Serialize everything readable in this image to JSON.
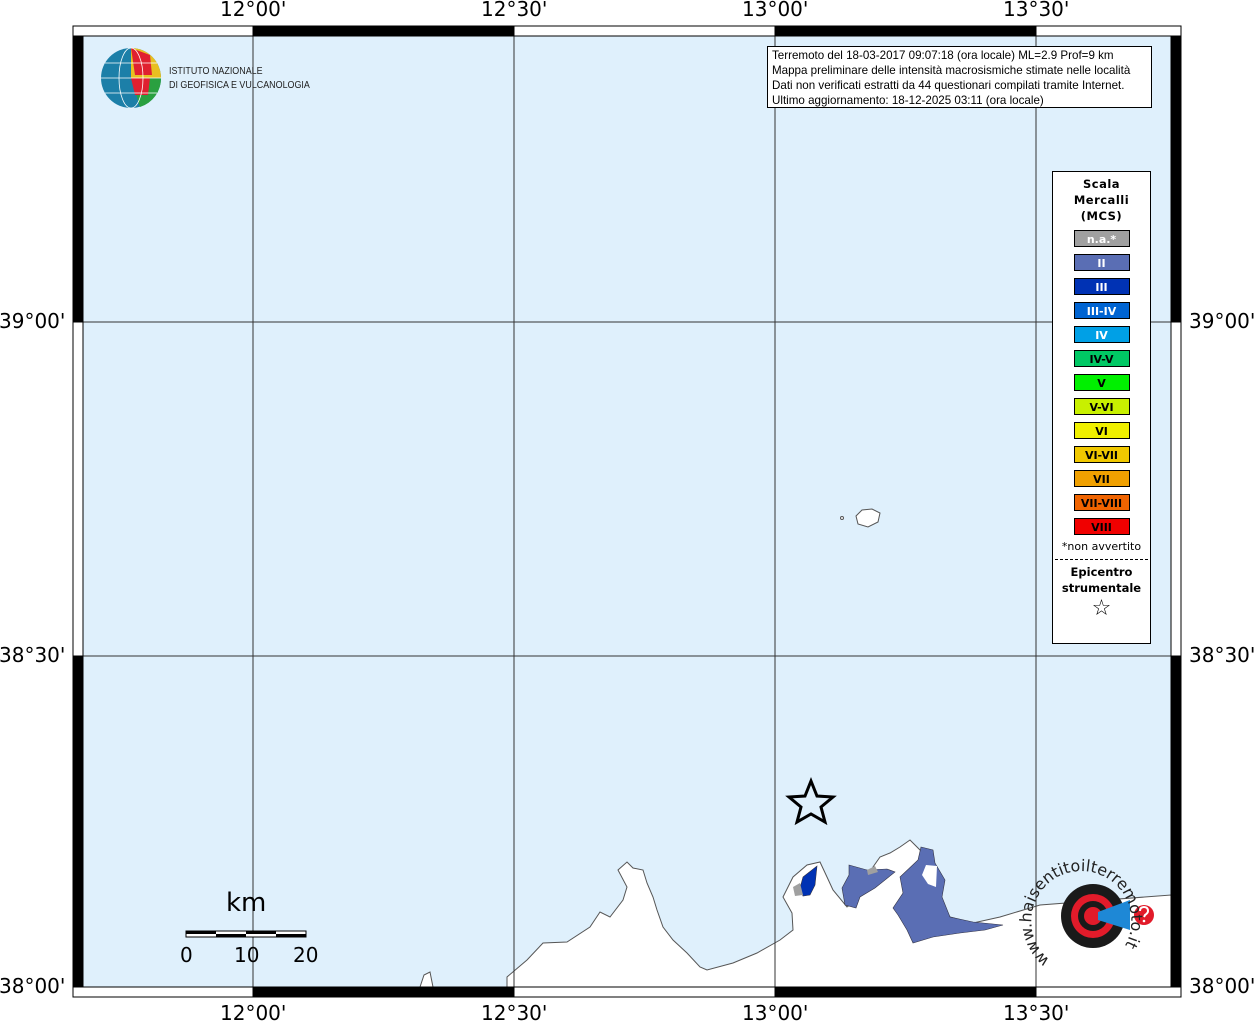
{
  "map": {
    "x_ticks": [
      "12°00'",
      "12°30'",
      "13°00'",
      "13°30'"
    ],
    "y_ticks": [
      "39°00'",
      "38°30'",
      "38°00'"
    ],
    "colors": {
      "sea": "#dff0fc",
      "land": "#ffffff",
      "frame": "#000000"
    }
  },
  "info": {
    "lines": [
      "Terremoto del 18-03-2017 09:07:18 (ora locale) ML=2.9 Prof=9 km",
      "Mappa preliminare delle intensità macrosismiche stimate nelle località",
      "Dati non verificati estratti da 44 questionari compilati tramite Internet.",
      "Ultimo aggiornamento: 18-12-2025 03:11 (ora locale)"
    ]
  },
  "logo": {
    "ingv_line1": "ISTITUTO NAZIONALE",
    "ingv_line2": "DI GEOFISICA E VULCANOLOGIA",
    "hsit_text": "www.haisentitoilterremoto.it"
  },
  "legend": {
    "title": [
      "Scala",
      "Mercalli",
      "(MCS)"
    ],
    "items": [
      {
        "label": "n.a.*",
        "color": "#a0a0a0",
        "text": "#ffffff"
      },
      {
        "label": "II",
        "color": "#5a6eb4",
        "text": "#ffffff"
      },
      {
        "label": "III",
        "color": "#0032b4",
        "text": "#ffffff"
      },
      {
        "label": "III-IV",
        "color": "#0064d2",
        "text": "#ffffff"
      },
      {
        "label": "IV",
        "color": "#00a0e6",
        "text": "#ffffff"
      },
      {
        "label": "IV-V",
        "color": "#00c864",
        "text": "#000000"
      },
      {
        "label": "V",
        "color": "#00f000",
        "text": "#000000"
      },
      {
        "label": "V-VI",
        "color": "#c8f000",
        "text": "#000000"
      },
      {
        "label": "VI",
        "color": "#f0f000",
        "text": "#000000"
      },
      {
        "label": "VI-VII",
        "color": "#f0c800",
        "text": "#000000"
      },
      {
        "label": "VII",
        "color": "#f0a000",
        "text": "#000000"
      },
      {
        "label": "VII-VIII",
        "color": "#f06400",
        "text": "#000000"
      },
      {
        "label": "VIII",
        "color": "#f00000",
        "text": "#000000"
      }
    ],
    "note": "*non avvertito",
    "epicenter_title": [
      "Epicentro",
      "strumentale"
    ],
    "epicenter_symbol": "☆"
  },
  "scalebar": {
    "unit": "km",
    "labels": [
      "0",
      "10",
      "20"
    ]
  }
}
